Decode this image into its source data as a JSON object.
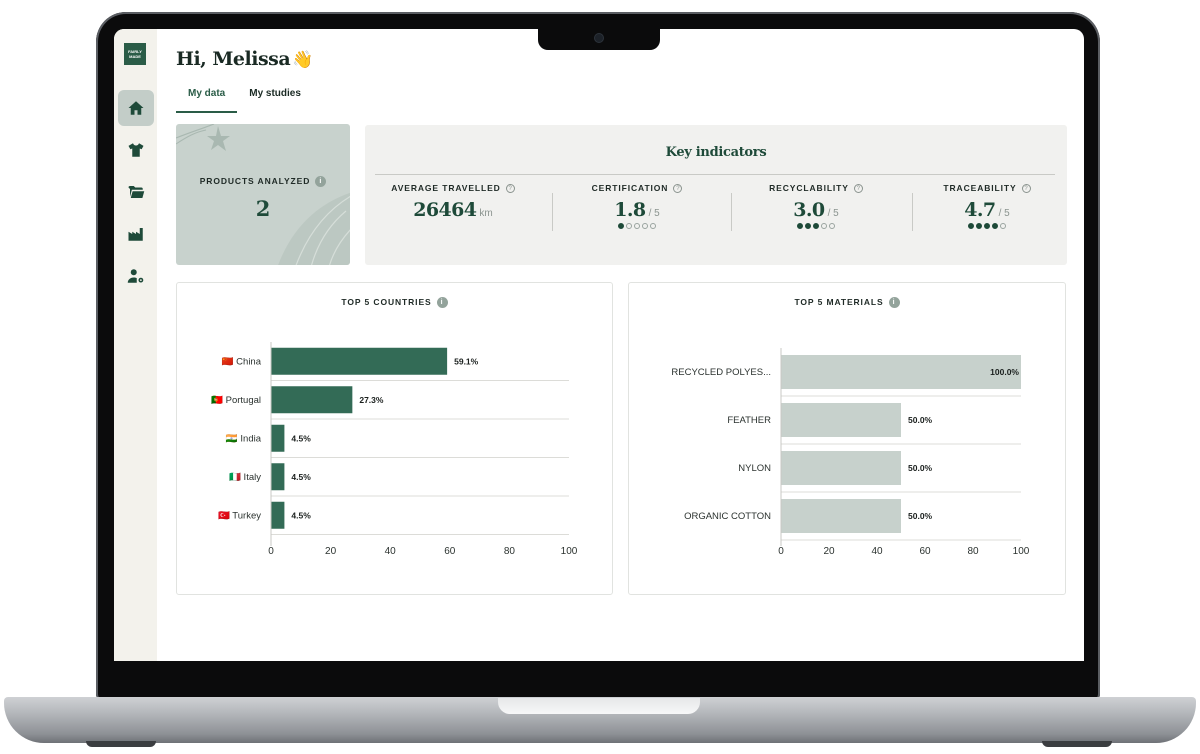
{
  "user": {
    "greeting": "Hi, Melissa",
    "wave": "👋"
  },
  "logo": {
    "text": "FAIRLY MADE"
  },
  "sidebar": {
    "items": [
      {
        "icon": "home-icon",
        "active": true
      },
      {
        "icon": "tshirt-icon",
        "active": false
      },
      {
        "icon": "folder-icon",
        "active": false
      },
      {
        "icon": "factory-icon",
        "active": false
      },
      {
        "icon": "user-settings-icon",
        "active": false
      }
    ]
  },
  "tabs": [
    {
      "label": "My data",
      "active": true
    },
    {
      "label": "My studies",
      "active": false
    }
  ],
  "products": {
    "label": "PRODUCTS ANALYZED",
    "info": "i",
    "value": "2"
  },
  "key_indicators": {
    "title": "Key indicators",
    "items": [
      {
        "label": "AVERAGE TRAVELLED",
        "help": "?",
        "value": "26464",
        "unit": "km"
      },
      {
        "label": "CERTIFICATION",
        "help": "?",
        "value": "1.8",
        "unit": "/ 5",
        "score": 1,
        "max": 5
      },
      {
        "label": "RECYCLABILITY",
        "help": "?",
        "value": "3.0",
        "unit": "/ 5",
        "score": 3,
        "max": 5
      },
      {
        "label": "TRACEABILITY",
        "help": "?",
        "value": "4.7",
        "unit": "/ 5",
        "score": 4,
        "max": 5
      }
    ]
  },
  "colors": {
    "brand": "#1e4a39",
    "countries_bar": "#336b56",
    "materials_bar": "#c7d1cc",
    "sidebar_bg": "#f3f2ec"
  },
  "chart_data": [
    {
      "type": "bar",
      "orientation": "horizontal",
      "title": "TOP 5 COUNTRIES",
      "info": "i",
      "categories": [
        "China",
        "Portugal",
        "India",
        "Italy",
        "Turkey"
      ],
      "flags": [
        "🇨🇳",
        "🇵🇹",
        "🇮🇳",
        "🇮🇹",
        "🇹🇷"
      ],
      "values": [
        59.1,
        27.3,
        4.5,
        4.5,
        4.5
      ],
      "data_labels": [
        "59.1%",
        "27.3%",
        "4.5%",
        "4.5%",
        "4.5%"
      ],
      "xlim": [
        0,
        100
      ],
      "xticks": [
        0,
        20,
        40,
        60,
        80,
        100
      ],
      "grid": "horizontal separators"
    },
    {
      "type": "bar",
      "orientation": "horizontal",
      "title": "TOP 5 MATERIALS",
      "info": "i",
      "categories": [
        "RECYCLED POLYES...",
        "FEATHER",
        "NYLON",
        "ORGANIC COTTON"
      ],
      "values": [
        100.0,
        50.0,
        50.0,
        50.0
      ],
      "data_labels": [
        "100.0%",
        "50.0%",
        "50.0%",
        "50.0%"
      ],
      "xlim": [
        0,
        100
      ],
      "xticks": [
        0,
        20,
        40,
        60,
        80,
        100
      ],
      "grid": "horizontal separators"
    }
  ]
}
